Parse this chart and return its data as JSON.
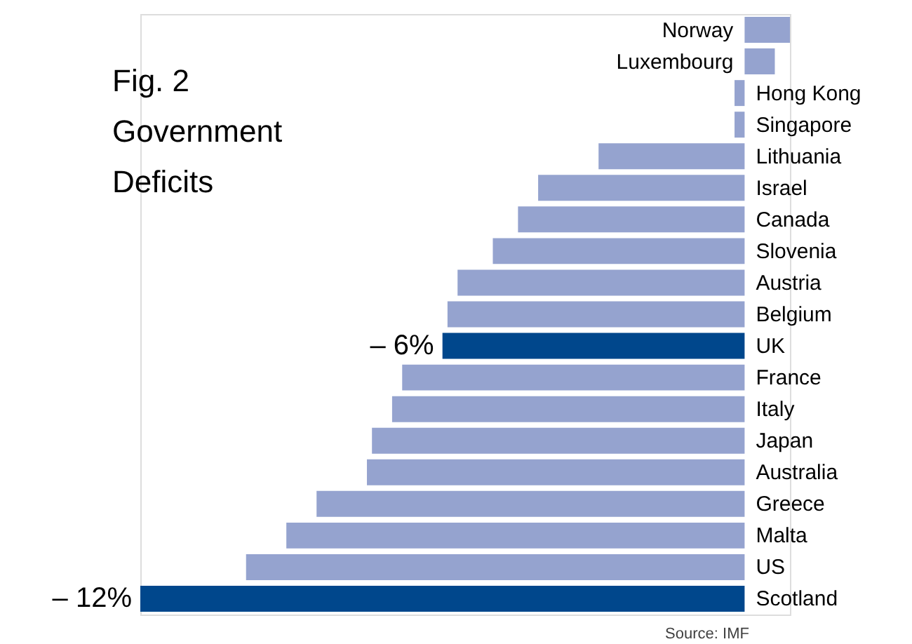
{
  "chart_data": {
    "type": "bar",
    "orientation": "horizontal",
    "title": "Fig. 2\nGovernment\nDeficits",
    "categories": [
      "Norway",
      "Luxembourg",
      "Hong Kong",
      "Singapore",
      "Lithuania",
      "Israel",
      "Canada",
      "Slovenia",
      "Austria",
      "Belgium",
      "UK",
      "France",
      "Italy",
      "Japan",
      "Australia",
      "Greece",
      "Malta",
      "US",
      "Scotland"
    ],
    "values": [
      0.9,
      0.6,
      -0.2,
      -0.2,
      -2.9,
      -4.1,
      -4.5,
      -5.0,
      -5.7,
      -5.9,
      -6,
      -6.8,
      -7.0,
      -7.4,
      -7.5,
      -8.5,
      -9.1,
      -9.9,
      -12
    ],
    "colors": [
      "#95a3cf",
      "#95a3cf",
      "#95a3cf",
      "#95a3cf",
      "#95a3cf",
      "#95a3cf",
      "#95a3cf",
      "#95a3cf",
      "#95a3cf",
      "#95a3cf",
      "#00478c",
      "#95a3cf",
      "#95a3cf",
      "#95a3cf",
      "#95a3cf",
      "#95a3cf",
      "#95a3cf",
      "#95a3cf",
      "#00478c"
    ],
    "value_labels": [
      null,
      null,
      null,
      null,
      null,
      null,
      null,
      null,
      null,
      null,
      "– 6%",
      null,
      null,
      null,
      null,
      null,
      null,
      null,
      "– 12%"
    ],
    "annotations": [
      "Source: IMF"
    ]
  }
}
